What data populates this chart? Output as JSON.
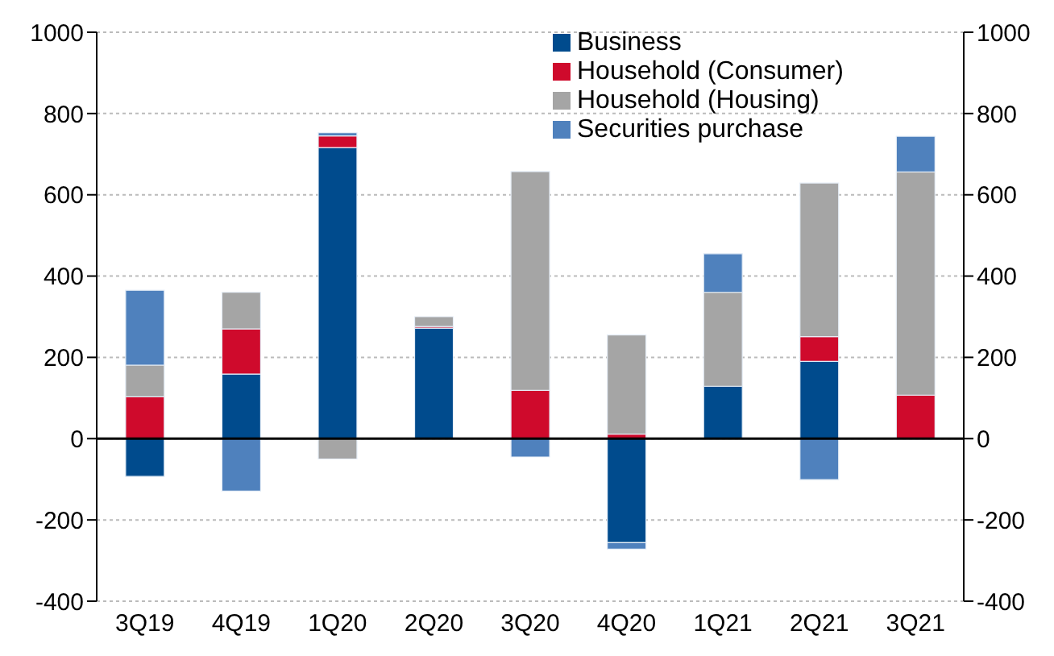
{
  "chart_data": {
    "type": "bar",
    "stacked": true,
    "categories": [
      "3Q19",
      "4Q19",
      "1Q20",
      "2Q20",
      "3Q20",
      "4Q20",
      "1Q21",
      "2Q21",
      "3Q21"
    ],
    "series": [
      {
        "name": "Business",
        "color": "#004b8d",
        "values": [
          -93,
          159,
          716,
          272,
          0,
          -256,
          129,
          190,
          0
        ]
      },
      {
        "name": "Household (Consumer)",
        "color": "#cf0a2c",
        "values": [
          103,
          111,
          29,
          4,
          119,
          11,
          0,
          61,
          107
        ]
      },
      {
        "name": "Household (Housing)",
        "color": "#a5a5a5",
        "values": [
          78,
          90,
          -50,
          24,
          538,
          244,
          231,
          378,
          549
        ]
      },
      {
        "name": "Securities purchase",
        "color": "#4f81bd",
        "values": [
          184,
          -129,
          8,
          null,
          -45,
          -16,
          95,
          -101,
          88
        ]
      }
    ],
    "ylim": [
      -400,
      1000
    ],
    "yticks": [
      -400,
      -200,
      0,
      200,
      400,
      600,
      800,
      1000
    ],
    "y2lim": [
      -400,
      1000
    ],
    "y2ticks": [
      -400,
      -200,
      0,
      200,
      400,
      600,
      800,
      1000
    ],
    "grid": "y",
    "legend": "top right"
  }
}
